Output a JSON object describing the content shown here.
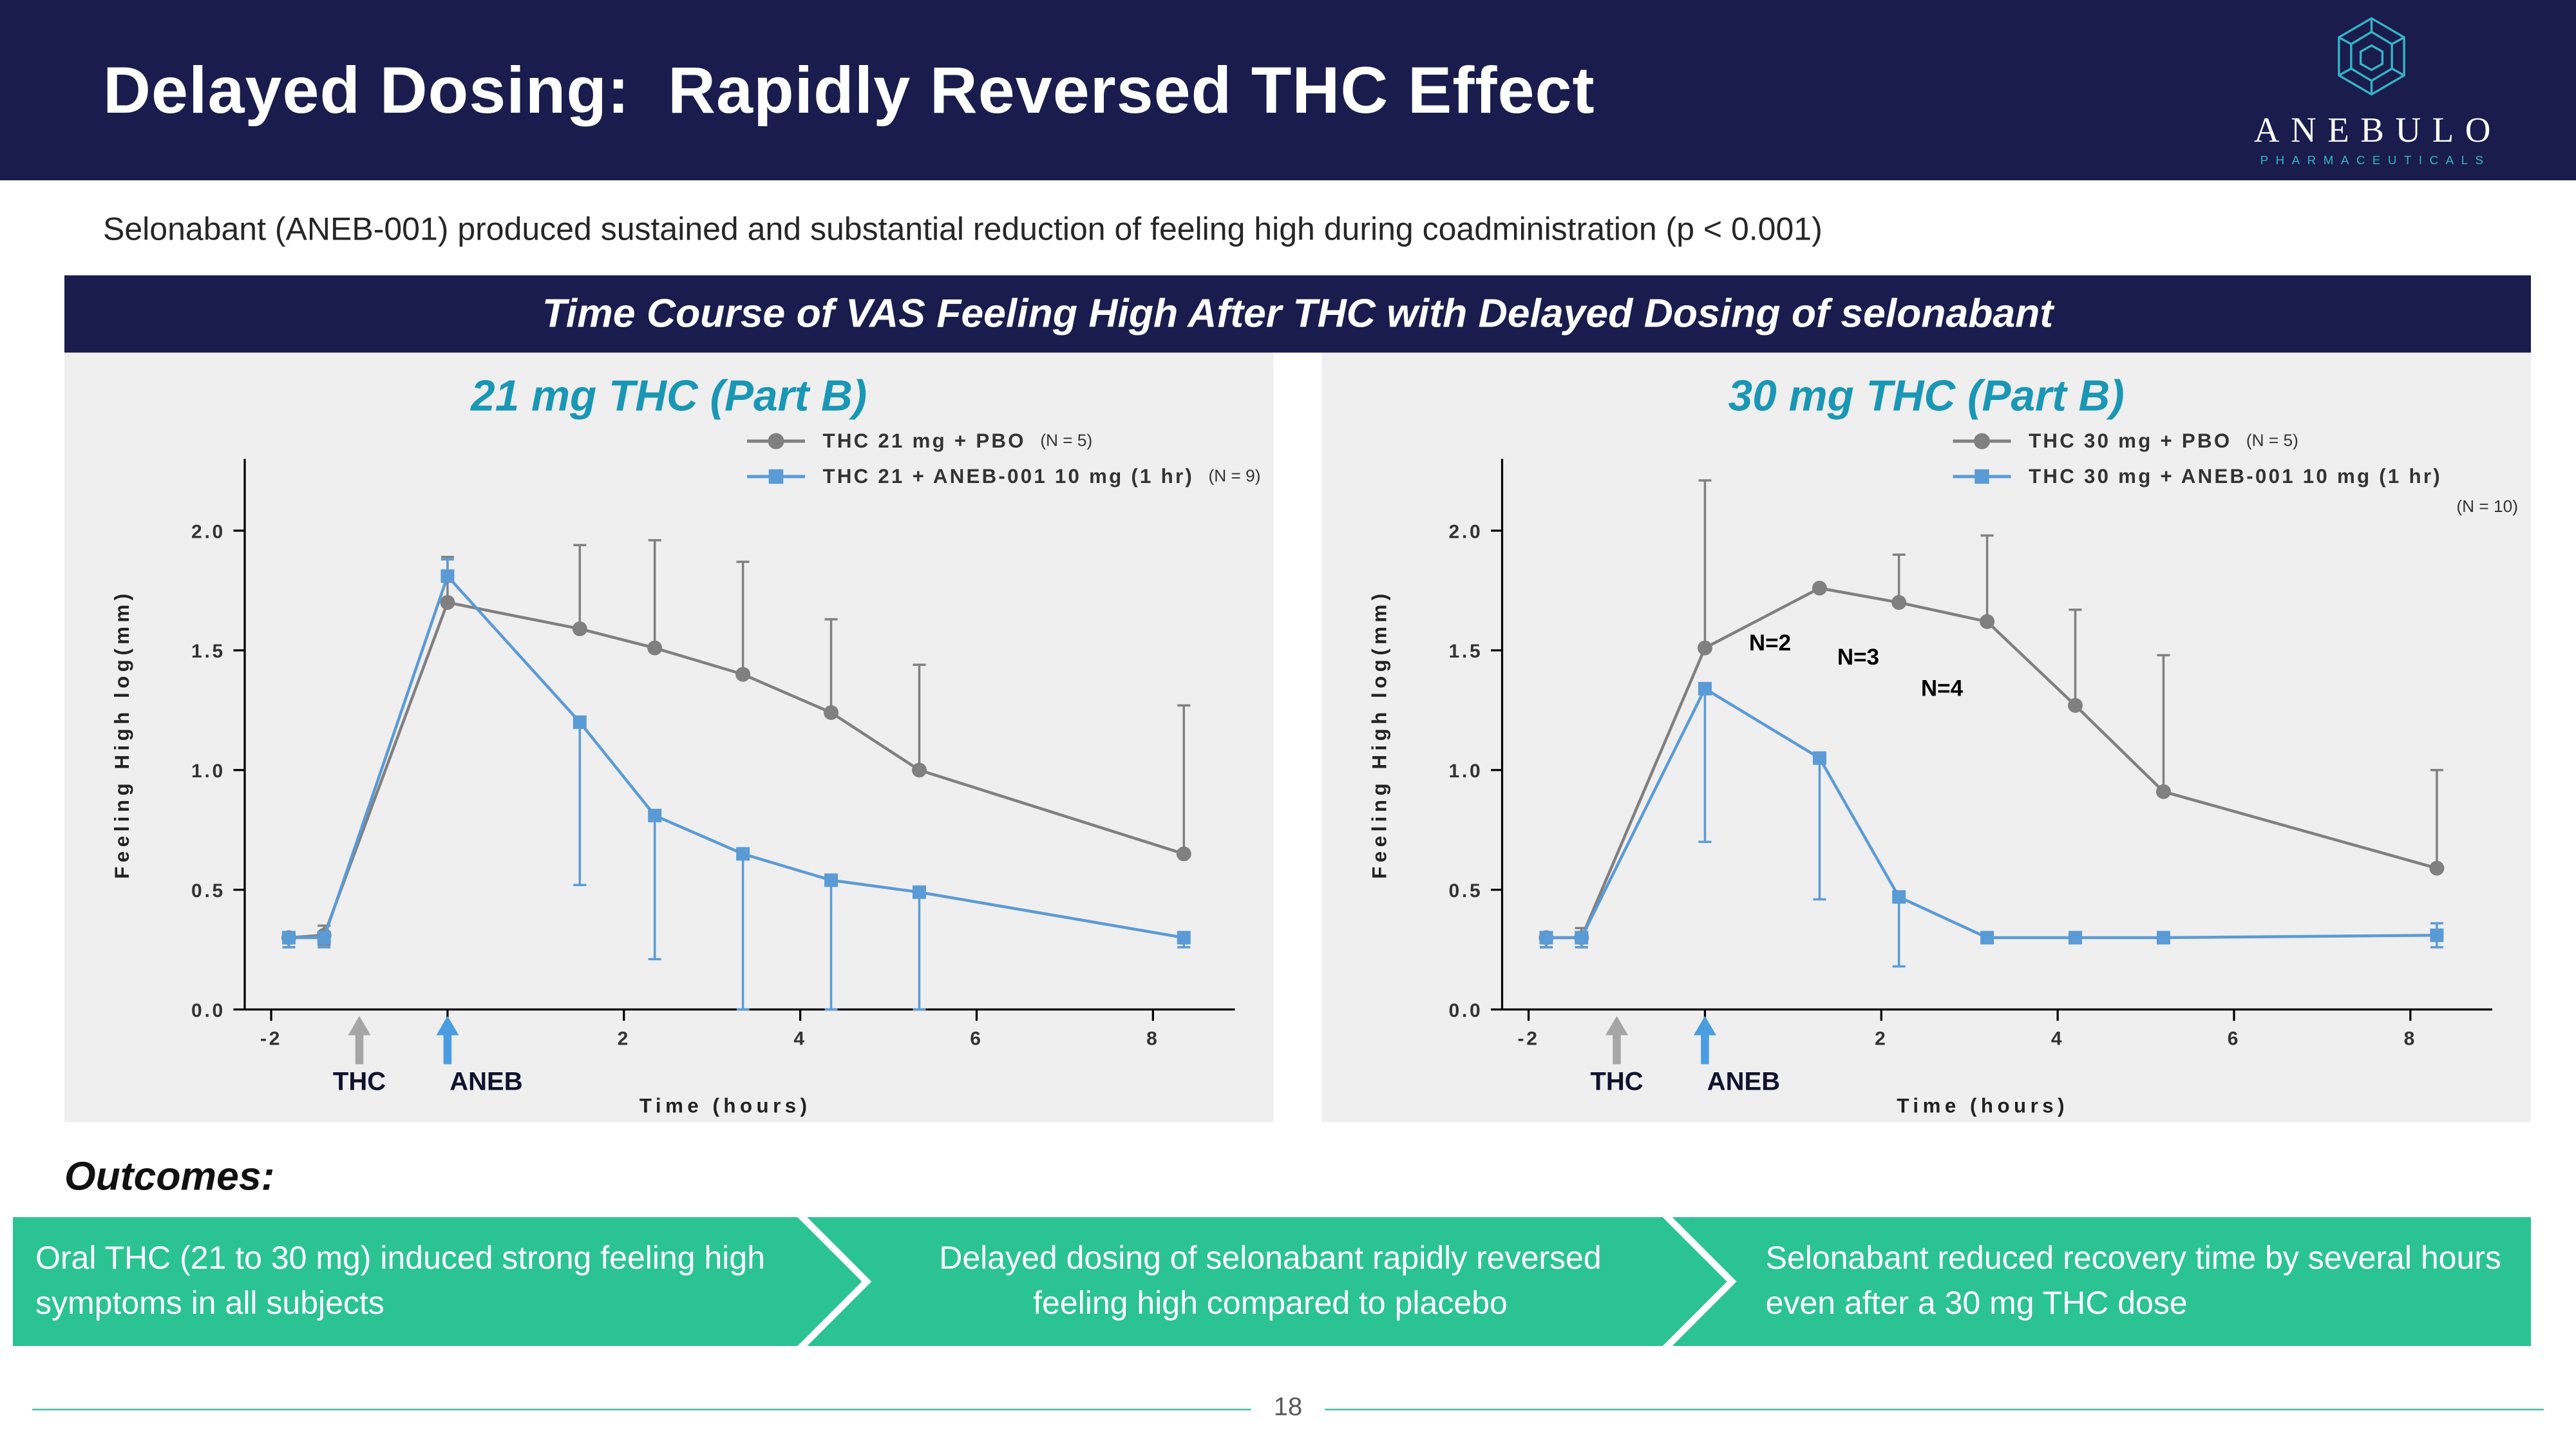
{
  "header": {
    "title": "Delayed Dosing:  Rapidly Reversed THC Effect",
    "logo": {
      "name": "ANEBULO",
      "subtext": "PHARMACEUTICALS"
    }
  },
  "subtitle": "Selonabant (ANEB-001) produced sustained and substantial reduction of feeling high during coadministration (p < 0.001)",
  "panel": {
    "title": "Time Course of VAS Feeling High After THC with Delayed Dosing of selonabant"
  },
  "outcomes": {
    "heading": "Outcomes:",
    "items": [
      "Oral THC (21 to 30 mg) induced strong feeling high symptoms in all subjects",
      "Delayed dosing of selonabant rapidly reversed feeling high compared to placebo",
      "Selonabant reduced recovery time by several hours even after a 30 mg THC dose"
    ]
  },
  "footer": {
    "page_number": "18"
  },
  "colors": {
    "navy": "#191c4d",
    "teal_title": "#1a97b5",
    "logo_teal": "#35b4c6",
    "green": "#2bc392",
    "panel_bg": "#efefef",
    "gray_series": "#808080",
    "blue_series": "#5b9bd5",
    "footer_rule": "#3fbf9f"
  },
  "chart_data": [
    {
      "type": "line",
      "title": "21 mg THC (Part B)",
      "xlabel": "Time (hours)",
      "ylabel": "Feeling High log(mm)",
      "xlim": [
        -2.3,
        8.6
      ],
      "ylim": [
        0,
        2.3
      ],
      "xticks": [
        -2,
        0,
        2,
        4,
        6,
        8
      ],
      "xtick_labels": [
        -2,
        2,
        4,
        6,
        8
      ],
      "yticks": [
        0,
        0.5,
        1,
        1.5,
        2
      ],
      "grid": false,
      "legend_position": "top-right",
      "series": [
        {
          "name": "THC 21 mg + PBO",
          "n_label": "(N = 5)",
          "color": "#808080",
          "marker": "circle",
          "x": [
            -1.8,
            -1.4,
            0,
            1.5,
            2.35,
            3.35,
            4.35,
            5.35,
            8.35
          ],
          "y": [
            0.3,
            0.31,
            1.7,
            1.59,
            1.51,
            1.4,
            1.24,
            1.0,
            0.65
          ],
          "err_up": [
            0,
            0.04,
            0.19,
            0.35,
            0.45,
            0.47,
            0.39,
            0.44,
            0.62
          ],
          "err_down": [
            0.04,
            0.04,
            0,
            0,
            0,
            0,
            0,
            0,
            0
          ]
        },
        {
          "name": "THC 21 + ANEB-001 10 mg (1 hr)",
          "n_label": "(N = 9)",
          "color": "#5b9bd5",
          "marker": "square",
          "x": [
            -1.8,
            -1.4,
            0,
            1.5,
            2.35,
            3.35,
            4.35,
            5.35,
            8.35
          ],
          "y": [
            0.3,
            0.3,
            1.81,
            1.2,
            0.81,
            0.65,
            0.54,
            0.49,
            0.3
          ],
          "err_up": [
            0,
            0,
            0.07,
            0,
            0,
            0,
            0,
            0,
            0
          ],
          "err_down": [
            0.04,
            0.04,
            0,
            0.68,
            0.6,
            0.65,
            0.54,
            0.49,
            0.04
          ]
        }
      ],
      "arrows": [
        {
          "label": "THC",
          "x": -1.0,
          "color": "#a6a6a6",
          "label_dx": 0
        },
        {
          "label": "ANEB",
          "x": 0,
          "color": "#4a9de0",
          "label_dx": 24
        }
      ],
      "annotations": []
    },
    {
      "type": "line",
      "title": "30 mg THC (Part B)",
      "xlabel": "Time (hours)",
      "ylabel": "Feeling High log(mm)",
      "xlim": [
        -2.3,
        8.6
      ],
      "ylim": [
        0,
        2.3
      ],
      "xticks": [
        -2,
        0,
        2,
        4,
        6,
        8
      ],
      "xtick_labels": [
        -2,
        2,
        4,
        6,
        8
      ],
      "yticks": [
        0,
        0.5,
        1,
        1.5,
        2
      ],
      "grid": false,
      "legend_position": "top-right",
      "series": [
        {
          "name": "THC 30 mg + PBO",
          "n_label": "(N = 5)",
          "color": "#808080",
          "marker": "circle",
          "x": [
            -1.8,
            -1.4,
            0,
            1.3,
            2.2,
            3.2,
            4.2,
            5.2,
            8.3
          ],
          "y": [
            0.3,
            0.3,
            1.51,
            1.76,
            1.7,
            1.62,
            1.27,
            0.91,
            0.59
          ],
          "err_up": [
            0,
            0.04,
            0.7,
            0,
            0.2,
            0.36,
            0.4,
            0.57,
            0.41
          ],
          "err_down": [
            0.04,
            0.04,
            0,
            0,
            0,
            0,
            0,
            0,
            0
          ]
        },
        {
          "name": "THC 30 mg + ANEB-001 10 mg (1 hr)",
          "n_label": "(N = 10)",
          "color": "#5b9bd5",
          "marker": "square",
          "x": [
            -1.8,
            -1.4,
            0,
            1.3,
            2.2,
            3.2,
            4.2,
            5.2,
            8.3
          ],
          "y": [
            0.3,
            0.3,
            1.34,
            1.05,
            0.47,
            0.3,
            0.3,
            0.3,
            0.31
          ],
          "err_up": [
            0,
            0,
            0,
            0,
            0,
            0,
            0,
            0,
            0.05
          ],
          "err_down": [
            0.04,
            0.04,
            0.64,
            0.59,
            0.29,
            0,
            0,
            0,
            0.05
          ]
        }
      ],
      "arrows": [
        {
          "label": "THC",
          "x": -1.0,
          "color": "#a6a6a6",
          "label_dx": 0
        },
        {
          "label": "ANEB",
          "x": 0,
          "color": "#4a9de0",
          "label_dx": 24
        }
      ],
      "annotations": [
        {
          "text": "N=2",
          "x": 0.5,
          "y": 1.5
        },
        {
          "text": "N=3",
          "x": 1.5,
          "y": 1.44
        },
        {
          "text": "N=4",
          "x": 2.45,
          "y": 1.31
        }
      ]
    }
  ]
}
